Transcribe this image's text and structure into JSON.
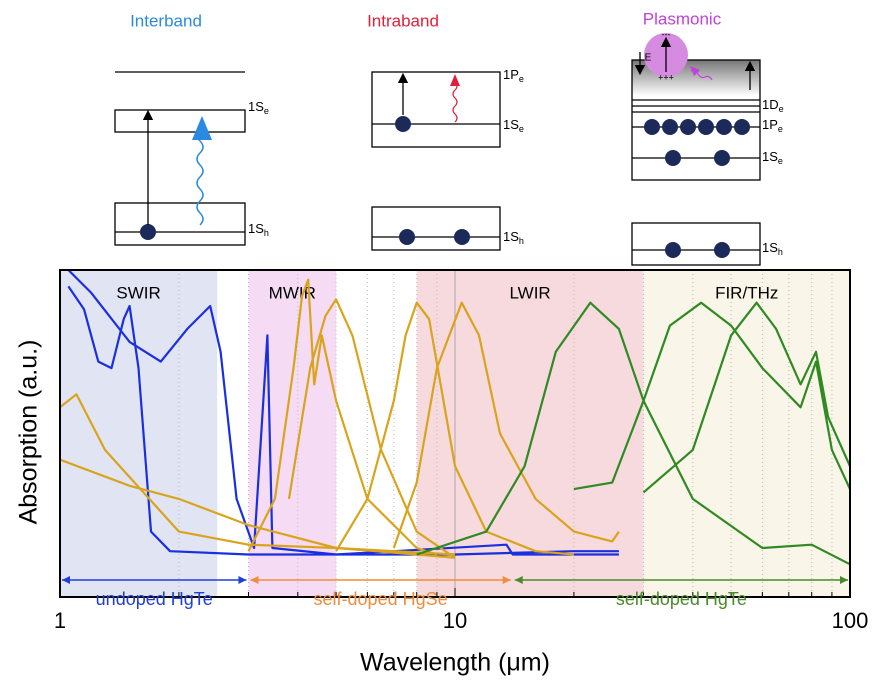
{
  "chart_data": {
    "type": "line",
    "xlabel": "Wavelength (μm)",
    "ylabel": "Absorption (a.u.)",
    "xscale": "log",
    "xlim": [
      1,
      100
    ],
    "ylim": [
      0,
      1
    ],
    "xticks": [
      1,
      10,
      100
    ],
    "xminorticks": [
      2,
      3,
      4,
      5,
      6,
      7,
      8,
      9,
      20,
      30,
      40,
      50,
      60,
      70,
      80,
      90
    ],
    "grid": true,
    "regions": [
      {
        "name": "SWIR",
        "range": [
          1,
          2.5
        ],
        "color": "#dcdff0"
      },
      {
        "name": "MWIR",
        "range": [
          3,
          5
        ],
        "color": "#f3d6f2"
      },
      {
        "name": "LWIR",
        "range": [
          8,
          30
        ],
        "color": "#f6d3d8"
      },
      {
        "name": "FIR/THz",
        "range": [
          30,
          100
        ],
        "color": "#f8f3e4"
      }
    ],
    "ranges": [
      {
        "label": "undoped HgTe",
        "range": [
          1,
          3
        ],
        "color": "#1f3fd6"
      },
      {
        "label": "self-doped HgSe",
        "range": [
          3,
          14
        ],
        "color": "#f08c3c"
      },
      {
        "label": "self-doped HgTe",
        "range": [
          14,
          100
        ],
        "color": "#4a8a2a"
      }
    ],
    "series": [
      {
        "color": "#1a2fe0",
        "x": [
          1.05,
          1.15,
          1.25,
          1.35,
          1.45,
          1.5,
          1.58,
          1.7,
          1.9,
          3,
          5,
          10,
          20,
          26
        ],
        "values": [
          0.95,
          0.88,
          0.72,
          0.7,
          0.85,
          0.89,
          0.7,
          0.2,
          0.14,
          0.13,
          0.13,
          0.13,
          0.14,
          0.14
        ]
      },
      {
        "color": "#1a2fe0",
        "x": [
          1.05,
          1.2,
          1.5,
          1.8,
          2.1,
          2.4,
          2.55,
          2.8,
          3.1,
          3.35,
          3.45,
          5,
          13.5,
          14,
          26
        ],
        "values": [
          1.0,
          0.93,
          0.78,
          0.72,
          0.82,
          0.89,
          0.75,
          0.3,
          0.15,
          0.8,
          0.15,
          0.13,
          0.16,
          0.13,
          0.13
        ]
      },
      {
        "color": "#d9a41c",
        "x": [
          1,
          1.1,
          1.3,
          2,
          3,
          5,
          10
        ],
        "values": [
          0.58,
          0.62,
          0.45,
          0.2,
          0.16,
          0.15,
          0.13
        ]
      },
      {
        "color": "#d9a41c",
        "x": [
          1,
          1.5,
          2,
          3,
          5,
          8,
          10
        ],
        "values": [
          0.42,
          0.34,
          0.3,
          0.22,
          0.15,
          0.13,
          0.12
        ]
      },
      {
        "color": "#d9a41c",
        "x": [
          3,
          3.5,
          3.9,
          4.1,
          4.25,
          4.4,
          4.6,
          5,
          6,
          8,
          9
        ],
        "values": [
          0.14,
          0.3,
          0.7,
          0.92,
          0.97,
          0.65,
          0.8,
          0.6,
          0.3,
          0.15,
          0.13
        ]
      },
      {
        "color": "#d9a41c",
        "x": [
          3.8,
          4.3,
          4.7,
          5,
          5.5,
          6.5,
          8,
          10
        ],
        "values": [
          0.3,
          0.7,
          0.86,
          0.91,
          0.8,
          0.45,
          0.2,
          0.12
        ]
      },
      {
        "color": "#d9a41c",
        "x": [
          5,
          6,
          7,
          7.5,
          8,
          8.6,
          10,
          12,
          16,
          20
        ],
        "values": [
          0.14,
          0.3,
          0.6,
          0.8,
          0.9,
          0.85,
          0.4,
          0.2,
          0.14,
          0.13
        ]
      },
      {
        "color": "#d9a41c",
        "x": [
          7,
          8,
          9,
          10.4,
          11.5,
          13,
          16,
          20,
          25,
          26
        ],
        "values": [
          0.15,
          0.35,
          0.7,
          0.9,
          0.8,
          0.5,
          0.3,
          0.2,
          0.17,
          0.2
        ]
      },
      {
        "color": "#2f8a22",
        "x": [
          8,
          12,
          15,
          18,
          22,
          26,
          30,
          40,
          60,
          80,
          100
        ],
        "values": [
          0.13,
          0.2,
          0.4,
          0.75,
          0.9,
          0.82,
          0.6,
          0.3,
          0.15,
          0.16,
          0.1
        ]
      },
      {
        "color": "#2f8a22",
        "x": [
          20,
          25,
          30,
          35,
          42,
          50,
          60,
          75,
          82,
          90,
          100
        ],
        "values": [
          0.33,
          0.35,
          0.6,
          0.83,
          0.9,
          0.83,
          0.7,
          0.58,
          0.72,
          0.45,
          0.33
        ]
      },
      {
        "color": "#2f8a22",
        "x": [
          30,
          40,
          50,
          58,
          65,
          75,
          82,
          88,
          100
        ],
        "values": [
          0.32,
          0.45,
          0.8,
          0.9,
          0.82,
          0.65,
          0.75,
          0.55,
          0.4
        ]
      }
    ]
  },
  "diagrams": [
    {
      "title": "Interband",
      "labels": [
        {
          "text": "1S",
          "sub": "e"
        },
        {
          "text": "1S",
          "sub": "h"
        }
      ]
    },
    {
      "title": "Intraband",
      "labels": [
        {
          "text": "1P",
          "sub": "e"
        },
        {
          "text": "1S",
          "sub": "e"
        },
        {
          "text": "1S",
          "sub": "h"
        }
      ]
    },
    {
      "title": "Plasmonic",
      "labels": [
        {
          "text": "1D",
          "sub": "e"
        },
        {
          "text": "1P",
          "sub": "e"
        },
        {
          "text": "1S",
          "sub": "e"
        },
        {
          "text": "1S",
          "sub": "h"
        }
      ],
      "field": "E",
      "plus": "+++",
      "minus": "---"
    }
  ]
}
